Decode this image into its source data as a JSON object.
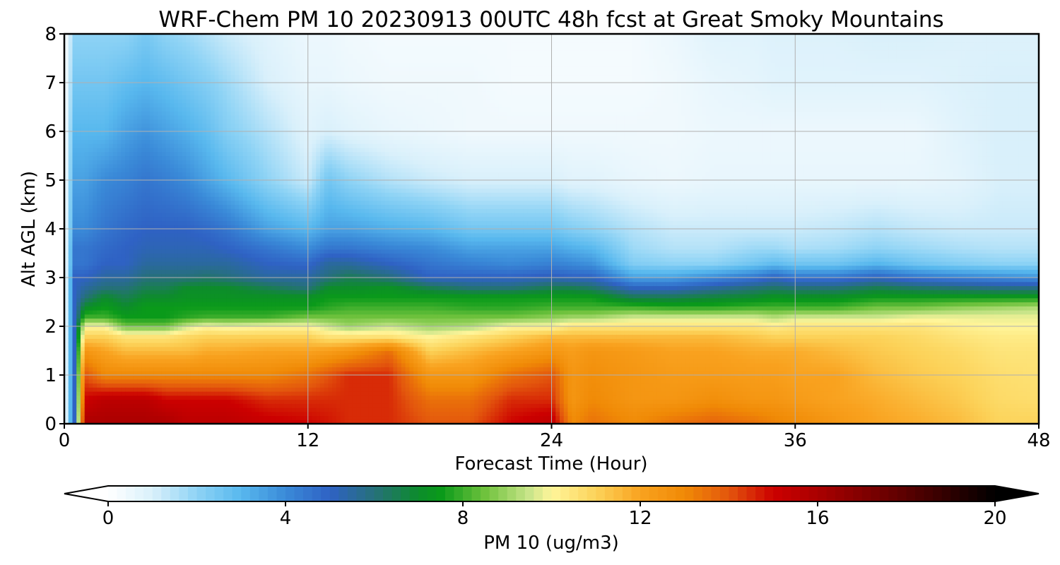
{
  "chart_data": {
    "type": "heatmap",
    "title": "WRF-Chem PM 10  20230913 00UTC 48h fcst at Great Smoky Mountains",
    "xlabel": "Forecast Time (Hour)",
    "ylabel": "Alt AGL (km)",
    "xlim": [
      0,
      48
    ],
    "ylim": [
      0,
      8
    ],
    "x_ticks": [
      0,
      12,
      24,
      36,
      48
    ],
    "y_ticks": [
      0,
      1,
      2,
      3,
      4,
      5,
      6,
      7,
      8
    ],
    "grid": true,
    "colorbar": {
      "label": "PM 10  (ug/m3)",
      "min": 0,
      "max": 20,
      "ticks": [
        0,
        4,
        8,
        12,
        16,
        20
      ],
      "extend": "both",
      "palette": [
        {
          "v": 0,
          "c": "#ffffff"
        },
        {
          "v": 1,
          "c": "#d9f0fb"
        },
        {
          "v": 2,
          "c": "#8ed3f5"
        },
        {
          "v": 3,
          "c": "#58b8ee"
        },
        {
          "v": 4,
          "c": "#3a8ad8"
        },
        {
          "v": 5,
          "c": "#2f62c4"
        },
        {
          "v": 6,
          "c": "#26707a"
        },
        {
          "v": 7,
          "c": "#0d8c2b"
        },
        {
          "v": 7.5,
          "c": "#0a9a1a"
        },
        {
          "v": 8.5,
          "c": "#6fc23d"
        },
        {
          "v": 9.5,
          "c": "#c9e58a"
        },
        {
          "v": 10,
          "c": "#fff59a"
        },
        {
          "v": 11,
          "c": "#fcd35a"
        },
        {
          "v": 12,
          "c": "#f9a21f"
        },
        {
          "v": 13,
          "c": "#f08a06"
        },
        {
          "v": 14,
          "c": "#e3560d"
        },
        {
          "v": 15,
          "c": "#cc0000"
        },
        {
          "v": 16,
          "c": "#aa0000"
        },
        {
          "v": 18,
          "c": "#5a0000"
        },
        {
          "v": 20,
          "c": "#000000"
        }
      ]
    },
    "profiles": {
      "hours": [
        0,
        0.5,
        1,
        2,
        3,
        4,
        5,
        6,
        7,
        8,
        10,
        12,
        13,
        14,
        16,
        18,
        20,
        22,
        24,
        25,
        26,
        28,
        30,
        32,
        34,
        35,
        36,
        38,
        40,
        42,
        44,
        46,
        48
      ],
      "altitudes_km": [
        0,
        0.5,
        1,
        1.5,
        1.8,
        2.0,
        2.2,
        2.4,
        2.6,
        2.8,
        3.0,
        3.3,
        3.6,
        4,
        5,
        6,
        7,
        8
      ],
      "values": [
        [
          0,
          0,
          0,
          0,
          0,
          0,
          0,
          0,
          0,
          0,
          0,
          0,
          0,
          0,
          0,
          0,
          0,
          0
        ],
        [
          5,
          5,
          5,
          5,
          5,
          5,
          5,
          5,
          5,
          5,
          5,
          4.5,
          4.5,
          4,
          3.5,
          3,
          2.5,
          2
        ],
        [
          16,
          15,
          14,
          12.5,
          11,
          10,
          8,
          7,
          6,
          5.5,
          5,
          4.5,
          4.5,
          4,
          3.5,
          3,
          2.5,
          2
        ],
        [
          16,
          15.5,
          13,
          12,
          11,
          10,
          8,
          7.5,
          7,
          6,
          5.5,
          5,
          4.8,
          4.5,
          4,
          3,
          2.5,
          2
        ],
        [
          16,
          15.5,
          13,
          11.5,
          10.5,
          8.5,
          7.5,
          7,
          6.5,
          6,
          5.5,
          5,
          5,
          4.8,
          4.2,
          3.5,
          2.8,
          2
        ],
        [
          16,
          15.5,
          13,
          11.5,
          10.5,
          8.5,
          7.5,
          7.5,
          7,
          6.5,
          6,
          5.5,
          5.2,
          5,
          4.5,
          3.8,
          3,
          2.4
        ],
        [
          16,
          15,
          13,
          11.5,
          10.5,
          8.5,
          7.5,
          7.5,
          7,
          6.5,
          6,
          5.5,
          5.2,
          5,
          4.3,
          3.5,
          2.8,
          2
        ],
        [
          15.5,
          15,
          13,
          11.5,
          10.8,
          9.5,
          7.8,
          7.5,
          7.2,
          7,
          6,
          5.5,
          5.2,
          5,
          4,
          3.2,
          2.5,
          1.8
        ],
        [
          15.5,
          15,
          13,
          11.8,
          11,
          10,
          8,
          7.5,
          7.2,
          7,
          6.2,
          5.5,
          5.2,
          4.8,
          3.5,
          2.8,
          2.2,
          1.5
        ],
        [
          15.5,
          15,
          13,
          11.8,
          11,
          9.8,
          8,
          7.5,
          7.2,
          7,
          6,
          5.5,
          5,
          4.5,
          3,
          2.2,
          1.8,
          1.2
        ],
        [
          15.2,
          14.5,
          13,
          12,
          11,
          10,
          8,
          7.5,
          7.2,
          6.5,
          5.5,
          5,
          4.5,
          3.5,
          2,
          1.5,
          1,
          0.8
        ],
        [
          15,
          14.5,
          13.5,
          12,
          11,
          10,
          8.5,
          7.5,
          7.2,
          6,
          5.5,
          4.8,
          4,
          3,
          1.2,
          0.8,
          0.6,
          0.5
        ],
        [
          14.8,
          14.5,
          14,
          12.2,
          10.5,
          9.5,
          8.5,
          7.8,
          7.5,
          7,
          6,
          5.5,
          4.5,
          3.5,
          2.5,
          1,
          0.6,
          0.5
        ],
        [
          14.5,
          14.5,
          14.5,
          12.5,
          10.5,
          9,
          8.5,
          8,
          7.5,
          7,
          6.5,
          5.5,
          4.5,
          3.5,
          2,
          0.8,
          0.5,
          0.4
        ],
        [
          14.5,
          14.5,
          14.5,
          13.5,
          10.5,
          9.5,
          8.5,
          8,
          7.5,
          7.2,
          6,
          5,
          4.2,
          3.2,
          1.5,
          0.6,
          0.4,
          0.3
        ],
        [
          14,
          13.5,
          12.5,
          11,
          10,
          9,
          8.5,
          8,
          7.5,
          6.5,
          5,
          4.5,
          4,
          3,
          1.2,
          0.5,
          0.4,
          0.3
        ],
        [
          14,
          13.5,
          12.5,
          11.5,
          10.5,
          9.2,
          8.5,
          7.8,
          7.5,
          6,
          5,
          4.2,
          3.5,
          2.5,
          1,
          0.4,
          0.4,
          0.3
        ],
        [
          15,
          14.5,
          13.5,
          12,
          11,
          10,
          8.5,
          7.8,
          7.5,
          6,
          5,
          4,
          3.5,
          2.5,
          1,
          0.4,
          0.3,
          0.3
        ],
        [
          15.5,
          14.5,
          14,
          12.5,
          11.5,
          10,
          8.8,
          8,
          7.5,
          6.5,
          5.2,
          4.2,
          3.5,
          2.5,
          1,
          0.4,
          0.3,
          0.3
        ],
        [
          13,
          12.5,
          12.5,
          12.2,
          11.5,
          10.5,
          9,
          8,
          7.5,
          6.5,
          5,
          4,
          3.2,
          2.2,
          0.8,
          0.4,
          0.3,
          0.3
        ],
        [
          13.5,
          13,
          12.8,
          12.5,
          11.5,
          10.5,
          9,
          8,
          7.5,
          6.2,
          5,
          3.8,
          3,
          2,
          0.8,
          0.4,
          0.3,
          0.3
        ],
        [
          13,
          12.5,
          12.5,
          12.3,
          11.5,
          10.5,
          9.5,
          8,
          6.5,
          5,
          3.5,
          2.2,
          1.8,
          1.5,
          0.6,
          0.4,
          0.3,
          0.3
        ],
        [
          13.5,
          12.5,
          12.3,
          12,
          11.5,
          10.5,
          9.5,
          7.8,
          6.5,
          5,
          3.5,
          2,
          1.5,
          1.2,
          0.5,
          0.4,
          0.4,
          0.5
        ],
        [
          13.8,
          12.8,
          12.3,
          12,
          11.5,
          10.5,
          9.5,
          7.8,
          6.8,
          5.5,
          4,
          2,
          1.5,
          1.2,
          0.6,
          0.5,
          0.6,
          0.8
        ],
        [
          13.5,
          12.5,
          12.2,
          11.8,
          11.2,
          10.5,
          9.5,
          8,
          7,
          6,
          4.5,
          2.5,
          1.8,
          1.2,
          0.6,
          0.5,
          0.7,
          0.8
        ],
        [
          13.2,
          12.5,
          12.2,
          11.8,
          11,
          10.3,
          9.2,
          8,
          7.3,
          6.2,
          5,
          2.8,
          1.8,
          1.2,
          0.6,
          0.5,
          0.8,
          0.9
        ],
        [
          13,
          12.3,
          12,
          11.8,
          11,
          10.5,
          9.5,
          8,
          7.2,
          6,
          4.5,
          2.5,
          1.6,
          1.2,
          0.6,
          0.5,
          0.8,
          0.9
        ],
        [
          12.5,
          12,
          12,
          11.5,
          11,
          10.5,
          9.5,
          8,
          7.2,
          6,
          4.5,
          2.5,
          1.7,
          1.3,
          0.6,
          0.5,
          0.8,
          0.9
        ],
        [
          12,
          11.8,
          11.5,
          11.2,
          11,
          10.5,
          9.5,
          8.5,
          7.5,
          6.5,
          5,
          3,
          2,
          1.5,
          0.6,
          0.5,
          0.8,
          1.0
        ],
        [
          11.8,
          11.5,
          11.2,
          11,
          10.8,
          10.5,
          9.8,
          8.5,
          7.5,
          6.2,
          4.5,
          2.5,
          1.8,
          1.3,
          0.6,
          0.5,
          0.8,
          1.0
        ],
        [
          11.5,
          11.2,
          11,
          10.8,
          10.5,
          10.2,
          9.8,
          8.8,
          7.5,
          6,
          4.2,
          2.2,
          1.6,
          1.2,
          0.7,
          0.8,
          0.9,
          0.9
        ],
        [
          11,
          10.8,
          10.7,
          10.5,
          10.3,
          10,
          9.8,
          9,
          7.5,
          5.8,
          4,
          2,
          1.5,
          1.2,
          1,
          1,
          1,
          0.9
        ],
        [
          11,
          10.7,
          10.6,
          10.5,
          10.3,
          10,
          9.8,
          9.2,
          7.5,
          5.8,
          3.8,
          2,
          1.5,
          1.2,
          1,
          1,
          1,
          0.9
        ]
      ]
    }
  }
}
